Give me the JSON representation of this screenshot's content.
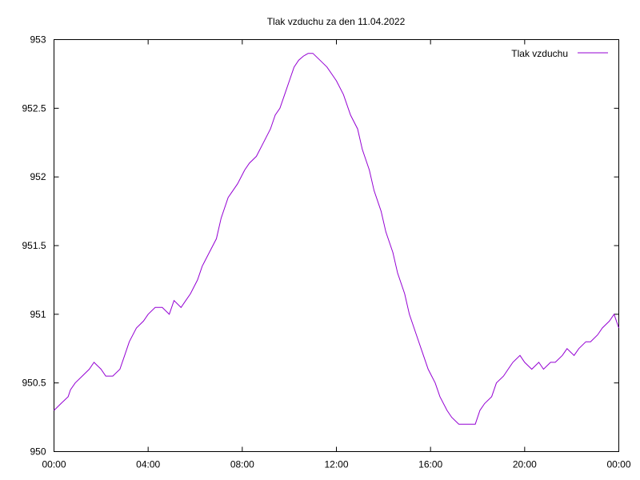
{
  "chart_data": {
    "type": "line",
    "title": "Tlak vzduchu za den 11.04.2022",
    "xlabel": "",
    "ylabel": "",
    "x_ticks": [
      "00:00",
      "04:00",
      "08:00",
      "12:00",
      "16:00",
      "20:00",
      "00:00"
    ],
    "y_ticks": [
      "950",
      "950.5",
      "951",
      "951.5",
      "952",
      "952.5",
      "953"
    ],
    "xlim_hours": [
      0,
      24
    ],
    "ylim": [
      950,
      953
    ],
    "grid": false,
    "legend_position": "top-right",
    "series": [
      {
        "name": "Tlak vzduchu",
        "color": "#9400d3",
        "x_hours": [
          0.0,
          0.3,
          0.6,
          0.7,
          0.9,
          1.2,
          1.5,
          1.7,
          2.0,
          2.2,
          2.5,
          2.8,
          3.0,
          3.2,
          3.5,
          3.8,
          4.0,
          4.3,
          4.6,
          4.9,
          5.1,
          5.4,
          5.6,
          5.8,
          6.1,
          6.3,
          6.6,
          6.9,
          7.1,
          7.4,
          7.6,
          7.8,
          8.1,
          8.3,
          8.6,
          8.9,
          9.2,
          9.4,
          9.6,
          9.8,
          10.0,
          10.2,
          10.4,
          10.6,
          10.8,
          11.0,
          11.3,
          11.6,
          11.8,
          12.0,
          12.3,
          12.6,
          12.9,
          13.1,
          13.4,
          13.6,
          13.9,
          14.1,
          14.4,
          14.6,
          14.9,
          15.1,
          15.4,
          15.7,
          15.9,
          16.2,
          16.4,
          16.7,
          16.9,
          17.2,
          17.4,
          17.6,
          17.9,
          18.1,
          18.3,
          18.6,
          18.8,
          19.1,
          19.3,
          19.5,
          19.8,
          20.0,
          20.3,
          20.6,
          20.8,
          21.1,
          21.3,
          21.6,
          21.8,
          22.1,
          22.3,
          22.6,
          22.8,
          23.1,
          23.3,
          23.6,
          23.8,
          24.0
        ],
        "values": [
          950.3,
          950.35,
          950.4,
          950.45,
          950.5,
          950.55,
          950.6,
          950.65,
          950.6,
          950.55,
          950.55,
          950.6,
          950.7,
          950.8,
          950.9,
          950.95,
          951.0,
          951.05,
          951.05,
          951.0,
          951.1,
          951.05,
          951.1,
          951.15,
          951.25,
          951.35,
          951.45,
          951.55,
          951.7,
          951.85,
          951.9,
          951.95,
          952.05,
          952.1,
          952.15,
          952.25,
          952.35,
          952.45,
          952.5,
          952.6,
          952.7,
          952.8,
          952.85,
          952.88,
          952.9,
          952.9,
          952.85,
          952.8,
          952.75,
          952.7,
          952.6,
          952.45,
          952.35,
          952.2,
          952.05,
          951.9,
          951.75,
          951.6,
          951.45,
          951.3,
          951.15,
          951.0,
          950.85,
          950.7,
          950.6,
          950.5,
          950.4,
          950.3,
          950.25,
          950.2,
          950.2,
          950.2,
          950.2,
          950.3,
          950.35,
          950.4,
          950.5,
          950.55,
          950.6,
          950.65,
          950.7,
          950.65,
          950.6,
          950.65,
          950.6,
          950.65,
          950.65,
          950.7,
          950.75,
          950.7,
          950.75,
          950.8,
          950.8,
          950.85,
          950.9,
          950.95,
          951.0,
          950.9
        ]
      }
    ]
  }
}
